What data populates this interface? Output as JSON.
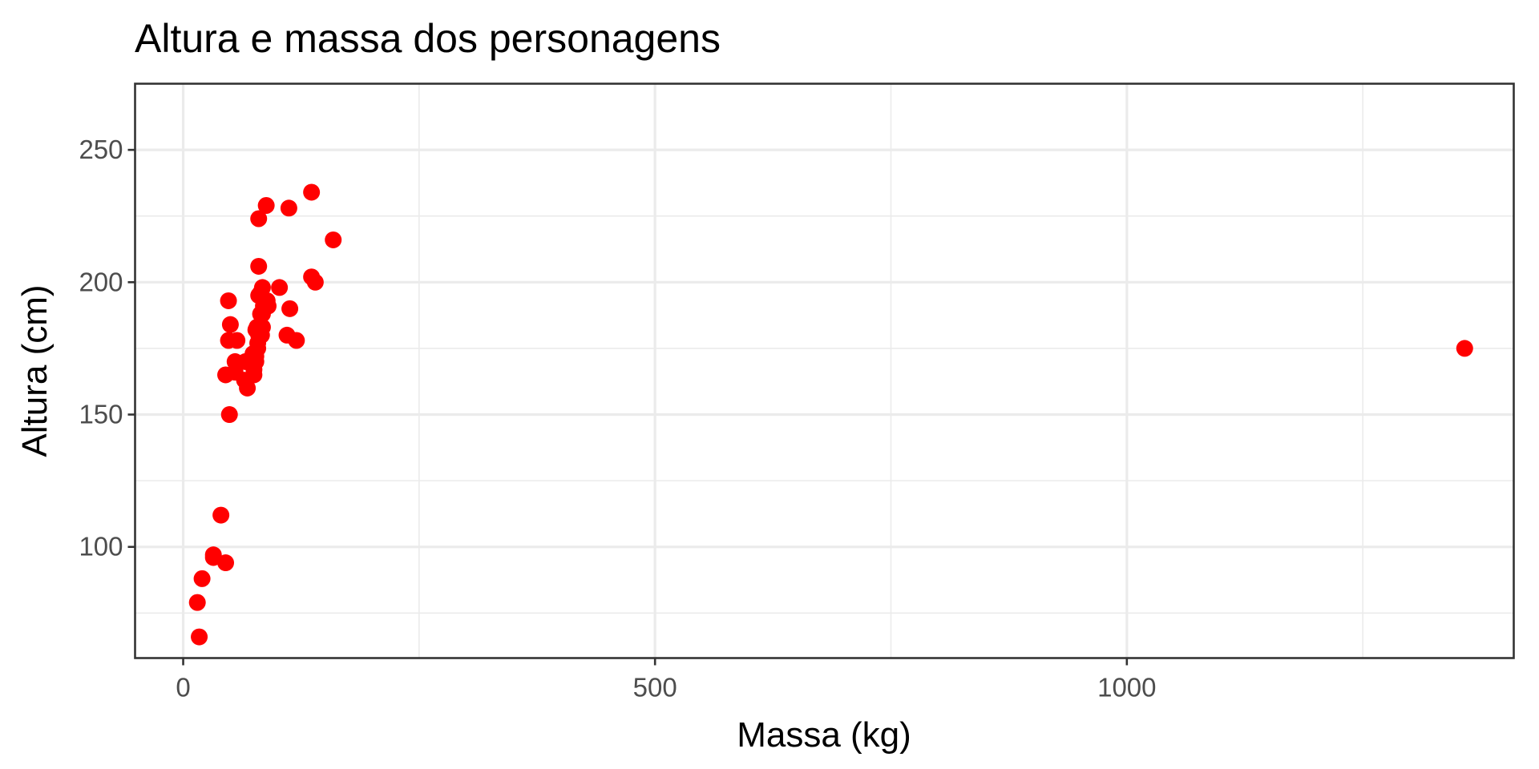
{
  "chart_data": {
    "type": "scatter",
    "title": "Altura e massa dos personagens",
    "xlabel": "Massa (kg)",
    "ylabel": "Altura (cm)",
    "xlim": [
      -51,
      1410
    ],
    "ylim": [
      58,
      275
    ],
    "x_ticks": [
      0,
      500,
      1000
    ],
    "y_ticks": [
      100,
      150,
      200,
      250
    ],
    "x_tick_labels": [
      "0",
      "500",
      "1000"
    ],
    "y_tick_labels": [
      "100",
      "150",
      "200",
      "250"
    ],
    "grid": true,
    "point_color": "#ff0000",
    "series": [
      {
        "points": [
          {
            "x": 77,
            "y": 172
          },
          {
            "x": 75,
            "y": 167
          },
          {
            "x": 32,
            "y": 96
          },
          {
            "x": 136,
            "y": 202
          },
          {
            "x": 49,
            "y": 150
          },
          {
            "x": 120,
            "y": 178
          },
          {
            "x": 75,
            "y": 165
          },
          {
            "x": 32,
            "y": 97
          },
          {
            "x": 84,
            "y": 183
          },
          {
            "x": 77,
            "y": 182
          },
          {
            "x": 84,
            "y": 188
          },
          {
            "x": 112,
            "y": 228
          },
          {
            "x": 80,
            "y": 180
          },
          {
            "x": 74,
            "y": 173
          },
          {
            "x": 1358,
            "y": 175
          },
          {
            "x": 77,
            "y": 170
          },
          {
            "x": 110,
            "y": 180
          },
          {
            "x": 17,
            "y": 66
          },
          {
            "x": 75,
            "y": 170
          },
          {
            "x": 78.2,
            "y": 183
          },
          {
            "x": 140,
            "y": 200
          },
          {
            "x": 113,
            "y": 190
          },
          {
            "x": 79,
            "y": 177
          },
          {
            "x": 79,
            "y": 175
          },
          {
            "x": 83,
            "y": 180
          },
          {
            "x": 20,
            "y": 88
          },
          {
            "x": 68,
            "y": 160
          },
          {
            "x": 89,
            "y": 193
          },
          {
            "x": 90,
            "y": 191
          },
          {
            "x": 66,
            "y": 170
          },
          {
            "x": 82,
            "y": 196
          },
          {
            "x": 40,
            "y": 112
          },
          {
            "x": 80,
            "y": 224
          },
          {
            "x": 55,
            "y": 170
          },
          {
            "x": 45,
            "y": 165
          },
          {
            "x": 65,
            "y": 163
          },
          {
            "x": 84,
            "y": 198
          },
          {
            "x": 82,
            "y": 188
          },
          {
            "x": 87,
            "y": 193
          },
          {
            "x": 50,
            "y": 184
          },
          {
            "x": 80,
            "y": 206
          },
          {
            "x": 57,
            "y": 178
          },
          {
            "x": 55,
            "y": 166
          },
          {
            "x": 48,
            "y": 178
          },
          {
            "x": 48,
            "y": 193
          },
          {
            "x": 85,
            "y": 191
          },
          {
            "x": 45,
            "y": 94
          },
          {
            "x": 15,
            "y": 79
          },
          {
            "x": 88,
            "y": 229
          },
          {
            "x": 159,
            "y": 216
          },
          {
            "x": 136,
            "y": 234
          },
          {
            "x": 102,
            "y": 198
          },
          {
            "x": 80,
            "y": 195
          }
        ]
      }
    ]
  }
}
